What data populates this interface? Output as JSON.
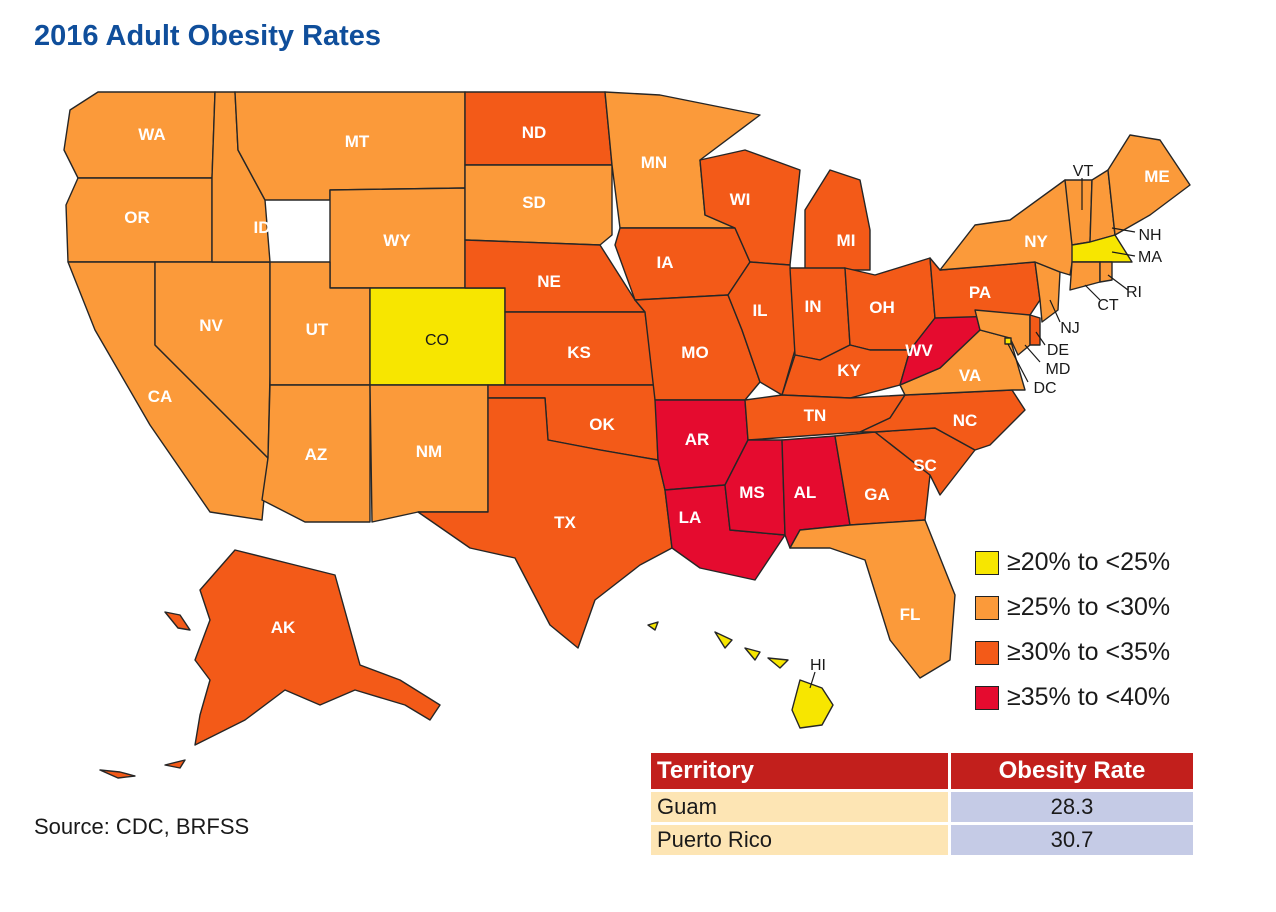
{
  "title": "2016 Adult Obesity Rates",
  "colors": {
    "r20_25": "#f7e600",
    "r25_30": "#fb9a3a",
    "r30_35": "#f35a18",
    "r35_40": "#e50b2f"
  },
  "legend": [
    {
      "label": "≥20% to <25%",
      "color": "#f7e600"
    },
    {
      "label": "≥25% to <30%",
      "color": "#fb9a3a"
    },
    {
      "label": "≥30% to <35%",
      "color": "#f35a18"
    },
    {
      "label": "≥35% to <40%",
      "color": "#e50b2f"
    }
  ],
  "states": [
    {
      "abbr": "WA",
      "range": "≥25% to <30%"
    },
    {
      "abbr": "OR",
      "range": "≥25% to <30%"
    },
    {
      "abbr": "CA",
      "range": "≥25% to <30%"
    },
    {
      "abbr": "NV",
      "range": "≥25% to <30%"
    },
    {
      "abbr": "ID",
      "range": "≥25% to <30%"
    },
    {
      "abbr": "MT",
      "range": "≥25% to <30%"
    },
    {
      "abbr": "WY",
      "range": "≥25% to <30%"
    },
    {
      "abbr": "UT",
      "range": "≥25% to <30%"
    },
    {
      "abbr": "CO",
      "range": "≥20% to <25%"
    },
    {
      "abbr": "AZ",
      "range": "≥25% to <30%"
    },
    {
      "abbr": "NM",
      "range": "≥25% to <30%"
    },
    {
      "abbr": "ND",
      "range": "≥30% to <35%"
    },
    {
      "abbr": "SD",
      "range": "≥25% to <30%"
    },
    {
      "abbr": "NE",
      "range": "≥30% to <35%"
    },
    {
      "abbr": "KS",
      "range": "≥30% to <35%"
    },
    {
      "abbr": "OK",
      "range": "≥30% to <35%"
    },
    {
      "abbr": "TX",
      "range": "≥30% to <35%"
    },
    {
      "abbr": "MN",
      "range": "≥25% to <30%"
    },
    {
      "abbr": "IA",
      "range": "≥30% to <35%"
    },
    {
      "abbr": "MO",
      "range": "≥30% to <35%"
    },
    {
      "abbr": "AR",
      "range": "≥35% to <40%"
    },
    {
      "abbr": "LA",
      "range": "≥35% to <40%"
    },
    {
      "abbr": "WI",
      "range": "≥30% to <35%"
    },
    {
      "abbr": "IL",
      "range": "≥30% to <35%"
    },
    {
      "abbr": "MI",
      "range": "≥30% to <35%"
    },
    {
      "abbr": "IN",
      "range": "≥30% to <35%"
    },
    {
      "abbr": "OH",
      "range": "≥30% to <35%"
    },
    {
      "abbr": "KY",
      "range": "≥30% to <35%"
    },
    {
      "abbr": "TN",
      "range": "≥30% to <35%"
    },
    {
      "abbr": "MS",
      "range": "≥35% to <40%"
    },
    {
      "abbr": "AL",
      "range": "≥35% to <40%"
    },
    {
      "abbr": "GA",
      "range": "≥30% to <35%"
    },
    {
      "abbr": "FL",
      "range": "≥25% to <30%"
    },
    {
      "abbr": "SC",
      "range": "≥30% to <35%"
    },
    {
      "abbr": "NC",
      "range": "≥30% to <35%"
    },
    {
      "abbr": "VA",
      "range": "≥25% to <30%"
    },
    {
      "abbr": "WV",
      "range": "≥35% to <40%"
    },
    {
      "abbr": "PA",
      "range": "≥30% to <35%"
    },
    {
      "abbr": "NY",
      "range": "≥25% to <30%"
    },
    {
      "abbr": "VT",
      "range": "≥25% to <30%"
    },
    {
      "abbr": "NH",
      "range": "≥25% to <30%"
    },
    {
      "abbr": "ME",
      "range": "≥25% to <30%"
    },
    {
      "abbr": "MA",
      "range": "≥20% to <25%"
    },
    {
      "abbr": "RI",
      "range": "≥25% to <30%"
    },
    {
      "abbr": "CT",
      "range": "≥25% to <30%"
    },
    {
      "abbr": "NJ",
      "range": "≥25% to <30%"
    },
    {
      "abbr": "DE",
      "range": "≥30% to <35%"
    },
    {
      "abbr": "MD",
      "range": "≥25% to <30%"
    },
    {
      "abbr": "DC",
      "range": "≥20% to <25%"
    },
    {
      "abbr": "AK",
      "range": "≥30% to <35%"
    },
    {
      "abbr": "HI",
      "range": "≥20% to <25%"
    }
  ],
  "source": "Source:  CDC, BRFSS",
  "territory_table": {
    "headers": [
      "Territory",
      "Obesity Rate"
    ],
    "rows": [
      {
        "territory": "Guam",
        "rate": "28.3"
      },
      {
        "territory": "Puerto Rico",
        "rate": "30.7"
      }
    ]
  }
}
